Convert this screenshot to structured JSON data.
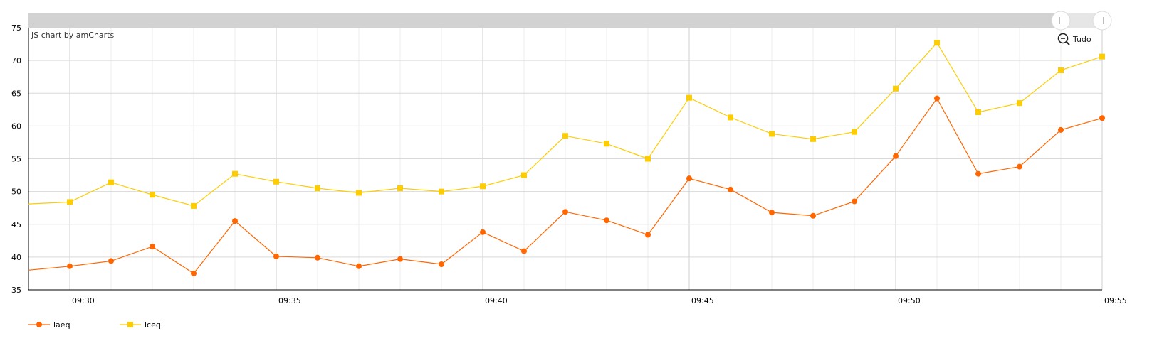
{
  "credit": "JS chart by amCharts",
  "zoom": {
    "label": "Tudo"
  },
  "chart_data": {
    "type": "line",
    "x": [
      "09:29",
      "09:30",
      "09:31",
      "09:32",
      "09:33",
      "09:34",
      "09:35",
      "09:36",
      "09:37",
      "09:38",
      "09:39",
      "09:40",
      "09:41",
      "09:42",
      "09:43",
      "09:44",
      "09:45",
      "09:46",
      "09:47",
      "09:48",
      "09:49",
      "09:50",
      "09:51",
      "09:52",
      "09:53",
      "09:54",
      "09:55"
    ],
    "xticks": [
      "09:30",
      "09:35",
      "09:40",
      "09:45",
      "09:50",
      "09:55"
    ],
    "ylim": [
      35,
      75
    ],
    "yticks": [
      35,
      40,
      45,
      50,
      55,
      60,
      65,
      70,
      75
    ],
    "grid": true,
    "legend_position": "bottom-left",
    "series": [
      {
        "name": "laeq",
        "color": "#ff6600",
        "marker": "circle",
        "values": [
          38.0,
          38.6,
          39.4,
          41.6,
          37.5,
          45.5,
          40.1,
          39.9,
          38.6,
          39.7,
          38.9,
          43.8,
          40.9,
          46.9,
          45.6,
          43.4,
          52.0,
          50.3,
          46.8,
          46.3,
          48.5,
          55.4,
          64.2,
          52.7,
          53.8,
          59.4,
          61.2
        ]
      },
      {
        "name": "lceq",
        "color": "#fccd05",
        "marker": "square",
        "values": [
          48.1,
          48.4,
          51.4,
          49.5,
          47.8,
          52.7,
          51.5,
          50.5,
          49.8,
          50.5,
          50.0,
          50.8,
          52.5,
          58.5,
          57.3,
          55.0,
          64.3,
          61.3,
          58.8,
          58.0,
          59.1,
          65.7,
          72.7,
          62.1,
          63.5,
          68.5,
          70.6
        ]
      }
    ]
  }
}
